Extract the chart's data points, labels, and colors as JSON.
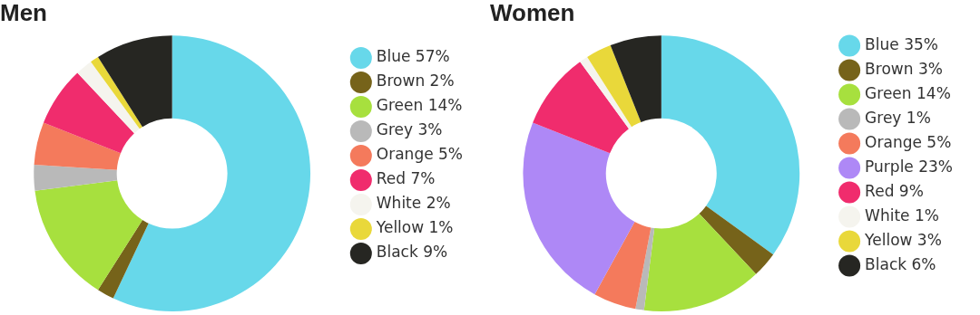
{
  "chart_data": [
    {
      "type": "donut",
      "title": "Men",
      "categories": [
        "Blue",
        "Brown",
        "Green",
        "Grey",
        "Orange",
        "Red",
        "White",
        "Yellow",
        "Black"
      ],
      "values": [
        57,
        2,
        14,
        3,
        5,
        7,
        2,
        1,
        9
      ],
      "value_labels": [
        "57%",
        "2%",
        "14%",
        "3%",
        "5%",
        "7%",
        "2%",
        "1%",
        "9%"
      ],
      "colors": [
        "#67d8ea",
        "#76631a",
        "#a7e03e",
        "#b9b9b9",
        "#f47a5c",
        "#f02c6d",
        "#f5f4ee",
        "#e9d83a",
        "#262622"
      ],
      "legend": "right"
    },
    {
      "type": "donut",
      "title": "Women",
      "categories": [
        "Blue",
        "Brown",
        "Green",
        "Grey",
        "Orange",
        "Purple",
        "Red",
        "White",
        "Yellow",
        "Black"
      ],
      "values": [
        35,
        3,
        14,
        1,
        5,
        23,
        9,
        1,
        3,
        6
      ],
      "value_labels": [
        "35%",
        "3%",
        "14%",
        "1%",
        "5%",
        "23%",
        "9%",
        "1%",
        "3%",
        "6%"
      ],
      "colors": [
        "#67d8ea",
        "#76631a",
        "#a7e03e",
        "#b9b9b9",
        "#f47a5c",
        "#ae88f6",
        "#f02c6d",
        "#f5f4ee",
        "#e9d83a",
        "#262622"
      ],
      "legend": "right"
    }
  ]
}
